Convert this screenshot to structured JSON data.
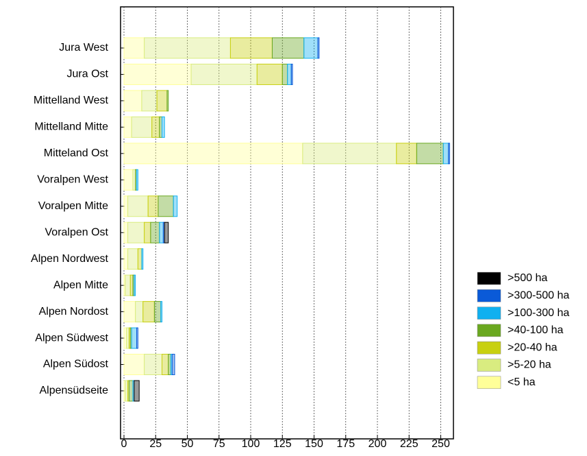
{
  "chart_data": {
    "type": "stacked-barh",
    "categories": [
      "Jura West",
      "Jura Ost",
      "Mittelland West",
      "Mittelland Mitte",
      "Mitteland Ost",
      "Voralpen West",
      "Voralpen Mitte",
      "Voralpen Ost",
      "Alpen Nordwest",
      "Alpen Mitte",
      "Alpen Nordost",
      "Alpen Südwest",
      "Alpen Südost",
      "Alpensüdseite"
    ],
    "series": [
      {
        "name": "<5 ha",
        "color": "#ffff99",
        "values": [
          16,
          53,
          14,
          6,
          141,
          7,
          3,
          3,
          3,
          1,
          9,
          2,
          16,
          1
        ]
      },
      {
        "name": ">5-20 ha",
        "color": "#d9ec80",
        "values": [
          68,
          52,
          12,
          16,
          74,
          2,
          16,
          13,
          8,
          4,
          6,
          2,
          14,
          2
        ]
      },
      {
        "name": ">20-40 ha",
        "color": "#c8d010",
        "values": [
          33,
          20,
          8,
          6,
          16,
          0,
          8,
          5,
          3,
          2,
          9,
          1,
          5,
          1
        ]
      },
      {
        "name": ">40-100 ha",
        "color": "#6aa820",
        "values": [
          25,
          4,
          1,
          2,
          21,
          1,
          12,
          7,
          0,
          1,
          5,
          1,
          2,
          3
        ]
      },
      {
        "name": ">100-300 ha",
        "color": "#10b0f0",
        "values": [
          11,
          3,
          0,
          2,
          4,
          1,
          3,
          3,
          1,
          1,
          1,
          4,
          1,
          1
        ]
      },
      {
        "name": ">300-500 ha",
        "color": "#0a5ad8",
        "values": [
          1,
          1,
          0,
          0,
          1,
          0,
          0,
          1,
          0,
          0,
          0,
          1,
          2,
          0
        ]
      },
      {
        "name": ">500 ha",
        "color": "#000000",
        "values": [
          0,
          0,
          0,
          0,
          0,
          0,
          0,
          3,
          0,
          0,
          0,
          0,
          0,
          4
        ]
      }
    ],
    "xlim": [
      0,
      260
    ],
    "xticks": [
      0,
      25,
      50,
      75,
      100,
      125,
      150,
      175,
      200,
      225,
      250
    ],
    "grid": true
  }
}
